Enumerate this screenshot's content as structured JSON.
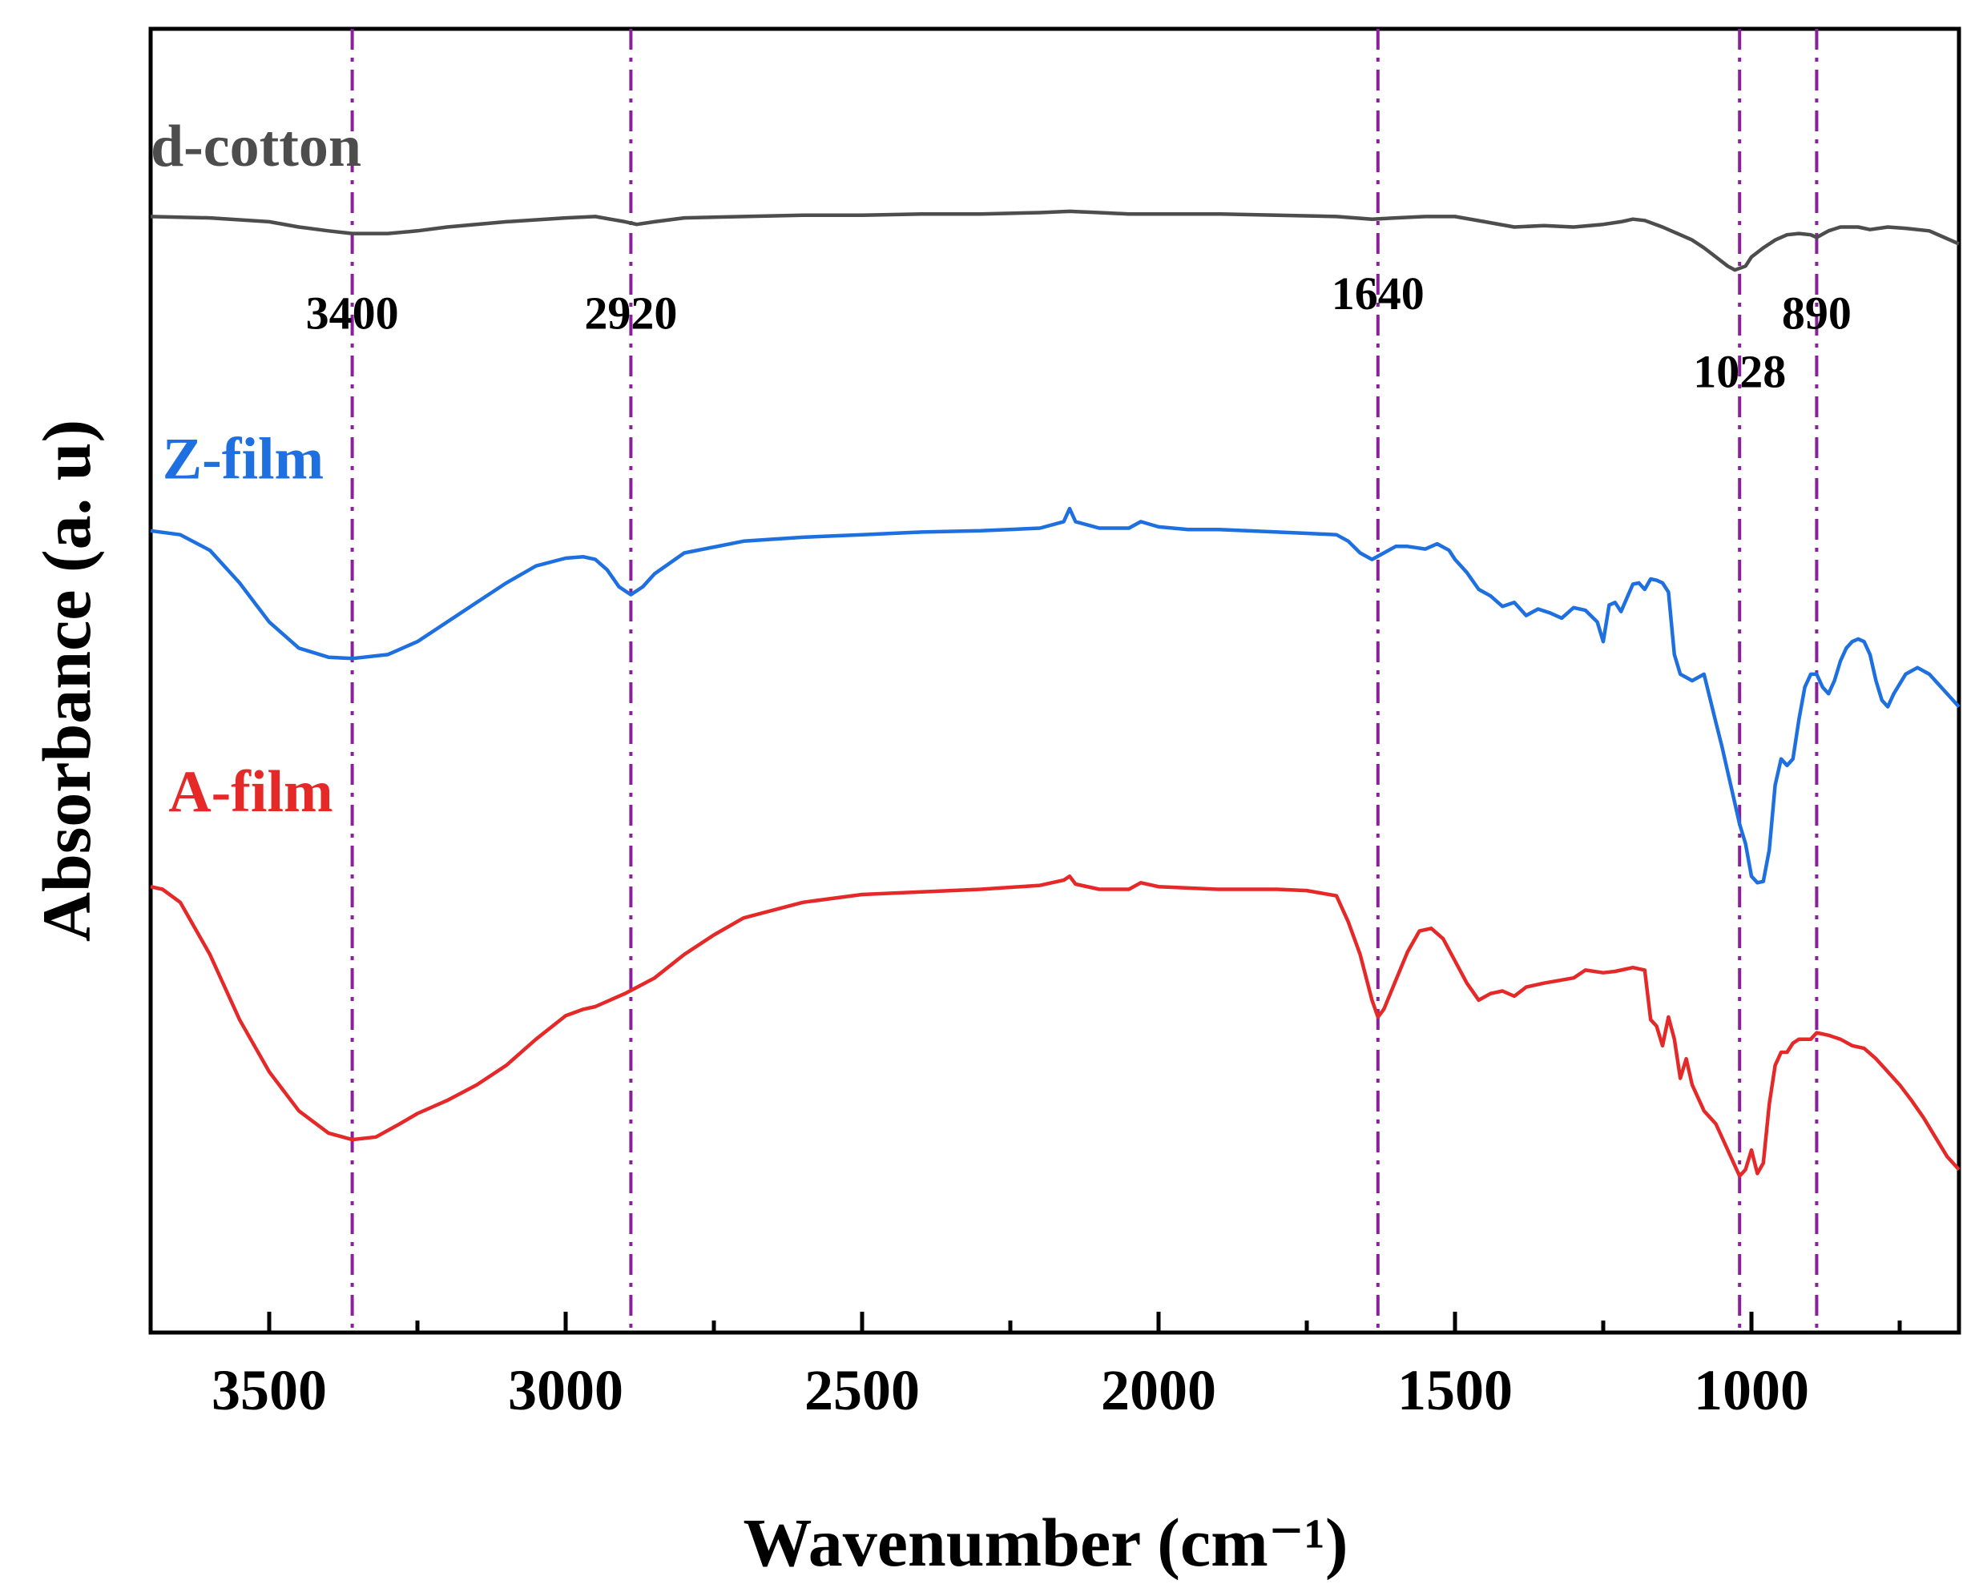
{
  "chart_data": {
    "type": "line",
    "title": "",
    "xlabel": "Wavenumber (cm⁻¹)",
    "ylabel": "Absorbance (a. u)",
    "xlim": [
      3700,
      650
    ],
    "ylim": [
      0,
      1
    ],
    "x_reversed": true,
    "grid": false,
    "xticks": [
      3500,
      3000,
      2500,
      2000,
      1500,
      1000
    ],
    "xtick_labels": [
      "3500",
      "3000",
      "2500",
      "2000",
      "1500",
      "1000"
    ],
    "xticks_minor": [
      3250,
      2750,
      2250,
      1750,
      1250,
      750
    ],
    "reference_lines": [
      3360,
      2890,
      1630,
      1020,
      890
    ],
    "peak_labels": [
      {
        "text": "3400",
        "x": 3360,
        "y": 0.77
      },
      {
        "text": "2920",
        "x": 2890,
        "y": 0.77
      },
      {
        "text": "1640",
        "x": 1630,
        "y": 0.785
      },
      {
        "text": "1028",
        "x": 1020,
        "y": 0.725
      },
      {
        "text": "890",
        "x": 890,
        "y": 0.77
      }
    ],
    "series": [
      {
        "name": "d-cotton",
        "color": "#4d4d4d",
        "label_pos": {
          "x": 3700,
          "y": 0.895
        },
        "x": [
          3700,
          3600,
          3500,
          3450,
          3400,
          3360,
          3300,
          3250,
          3200,
          3100,
          3000,
          2950,
          2900,
          2880,
          2850,
          2800,
          2700,
          2600,
          2500,
          2400,
          2300,
          2200,
          2150,
          2100,
          2050,
          2000,
          1950,
          1900,
          1800,
          1700,
          1640,
          1600,
          1550,
          1500,
          1450,
          1400,
          1350,
          1300,
          1250,
          1220,
          1200,
          1180,
          1150,
          1120,
          1100,
          1080,
          1060,
          1040,
          1028,
          1010,
          1000,
          980,
          960,
          940,
          920,
          900,
          890,
          870,
          850,
          820,
          800,
          770,
          740,
          700,
          650
        ],
        "values": [
          0.856,
          0.855,
          0.852,
          0.848,
          0.845,
          0.843,
          0.843,
          0.845,
          0.848,
          0.852,
          0.855,
          0.856,
          0.852,
          0.85,
          0.852,
          0.855,
          0.856,
          0.857,
          0.857,
          0.858,
          0.858,
          0.859,
          0.86,
          0.859,
          0.858,
          0.858,
          0.858,
          0.858,
          0.857,
          0.856,
          0.854,
          0.855,
          0.856,
          0.856,
          0.852,
          0.848,
          0.849,
          0.848,
          0.85,
          0.852,
          0.854,
          0.853,
          0.848,
          0.842,
          0.838,
          0.832,
          0.825,
          0.818,
          0.815,
          0.818,
          0.825,
          0.832,
          0.838,
          0.842,
          0.843,
          0.842,
          0.84,
          0.845,
          0.848,
          0.848,
          0.846,
          0.848,
          0.847,
          0.845,
          0.835
        ]
      },
      {
        "name": "Z-film",
        "color": "#1e6fe0",
        "label_pos": {
          "x": 3680,
          "y": 0.655
        },
        "x": [
          3700,
          3650,
          3600,
          3550,
          3500,
          3450,
          3400,
          3360,
          3300,
          3250,
          3200,
          3150,
          3100,
          3050,
          3000,
          2970,
          2950,
          2930,
          2910,
          2890,
          2870,
          2850,
          2800,
          2700,
          2600,
          2500,
          2400,
          2300,
          2200,
          2160,
          2150,
          2140,
          2100,
          2050,
          2030,
          2000,
          1950,
          1900,
          1850,
          1800,
          1750,
          1700,
          1680,
          1660,
          1640,
          1620,
          1600,
          1580,
          1550,
          1530,
          1510,
          1500,
          1480,
          1460,
          1440,
          1420,
          1400,
          1380,
          1360,
          1340,
          1320,
          1300,
          1280,
          1260,
          1250,
          1240,
          1230,
          1220,
          1200,
          1190,
          1180,
          1170,
          1160,
          1150,
          1140,
          1130,
          1120,
          1100,
          1080,
          1060,
          1050,
          1040,
          1030,
          1020,
          1010,
          1000,
          990,
          980,
          970,
          960,
          950,
          940,
          930,
          920,
          910,
          900,
          890,
          880,
          870,
          860,
          850,
          840,
          830,
          820,
          810,
          800,
          790,
          780,
          770,
          760,
          740,
          720,
          700,
          680,
          650
        ],
        "values": [
          0.615,
          0.612,
          0.6,
          0.575,
          0.545,
          0.525,
          0.518,
          0.517,
          0.52,
          0.53,
          0.545,
          0.56,
          0.575,
          0.588,
          0.594,
          0.595,
          0.593,
          0.585,
          0.572,
          0.566,
          0.572,
          0.582,
          0.598,
          0.607,
          0.61,
          0.612,
          0.614,
          0.615,
          0.617,
          0.622,
          0.632,
          0.622,
          0.617,
          0.617,
          0.622,
          0.618,
          0.616,
          0.616,
          0.615,
          0.614,
          0.613,
          0.612,
          0.607,
          0.598,
          0.593,
          0.598,
          0.603,
          0.603,
          0.601,
          0.605,
          0.6,
          0.593,
          0.583,
          0.57,
          0.565,
          0.557,
          0.56,
          0.55,
          0.555,
          0.552,
          0.548,
          0.556,
          0.554,
          0.545,
          0.53,
          0.558,
          0.56,
          0.553,
          0.574,
          0.575,
          0.57,
          0.578,
          0.577,
          0.575,
          0.568,
          0.52,
          0.505,
          0.5,
          0.505,
          0.468,
          0.45,
          0.43,
          0.41,
          0.39,
          0.375,
          0.35,
          0.345,
          0.346,
          0.37,
          0.42,
          0.44,
          0.435,
          0.44,
          0.47,
          0.495,
          0.505,
          0.505,
          0.495,
          0.49,
          0.5,
          0.515,
          0.525,
          0.53,
          0.532,
          0.53,
          0.52,
          0.5,
          0.485,
          0.48,
          0.49,
          0.505,
          0.51,
          0.505,
          0.495,
          0.48
        ]
      },
      {
        "name": "A-film",
        "color": "#e52828",
        "label_pos": {
          "x": 3670,
          "y": 0.4
        },
        "x": [
          3700,
          3680,
          3650,
          3600,
          3550,
          3500,
          3450,
          3400,
          3360,
          3320,
          3280,
          3250,
          3200,
          3150,
          3100,
          3050,
          3000,
          2970,
          2950,
          2900,
          2850,
          2800,
          2750,
          2700,
          2600,
          2500,
          2400,
          2300,
          2200,
          2160,
          2150,
          2140,
          2100,
          2050,
          2030,
          2000,
          1950,
          1900,
          1850,
          1800,
          1750,
          1700,
          1680,
          1660,
          1640,
          1630,
          1620,
          1600,
          1580,
          1560,
          1540,
          1520,
          1500,
          1480,
          1460,
          1440,
          1420,
          1400,
          1380,
          1350,
          1300,
          1280,
          1250,
          1230,
          1200,
          1180,
          1170,
          1160,
          1150,
          1140,
          1130,
          1120,
          1110,
          1100,
          1080,
          1060,
          1040,
          1030,
          1020,
          1010,
          1000,
          990,
          980,
          970,
          960,
          950,
          940,
          930,
          920,
          900,
          890,
          870,
          850,
          830,
          810,
          790,
          770,
          750,
          730,
          710,
          690,
          670,
          650
        ],
        "values": [
          0.342,
          0.34,
          0.33,
          0.29,
          0.24,
          0.2,
          0.17,
          0.153,
          0.148,
          0.15,
          0.16,
          0.168,
          0.178,
          0.19,
          0.205,
          0.225,
          0.243,
          0.248,
          0.25,
          0.26,
          0.272,
          0.29,
          0.305,
          0.318,
          0.33,
          0.336,
          0.338,
          0.34,
          0.343,
          0.347,
          0.35,
          0.344,
          0.34,
          0.34,
          0.345,
          0.342,
          0.341,
          0.34,
          0.34,
          0.34,
          0.339,
          0.335,
          0.315,
          0.29,
          0.255,
          0.242,
          0.248,
          0.27,
          0.292,
          0.308,
          0.31,
          0.302,
          0.285,
          0.268,
          0.255,
          0.26,
          0.262,
          0.258,
          0.265,
          0.268,
          0.272,
          0.278,
          0.276,
          0.277,
          0.28,
          0.278,
          0.24,
          0.235,
          0.22,
          0.242,
          0.225,
          0.195,
          0.21,
          0.19,
          0.17,
          0.16,
          0.14,
          0.13,
          0.12,
          0.125,
          0.14,
          0.122,
          0.13,
          0.175,
          0.205,
          0.215,
          0.215,
          0.222,
          0.225,
          0.225,
          0.23,
          0.228,
          0.225,
          0.22,
          0.218,
          0.21,
          0.2,
          0.19,
          0.178,
          0.165,
          0.15,
          0.135,
          0.125
        ]
      }
    ]
  }
}
